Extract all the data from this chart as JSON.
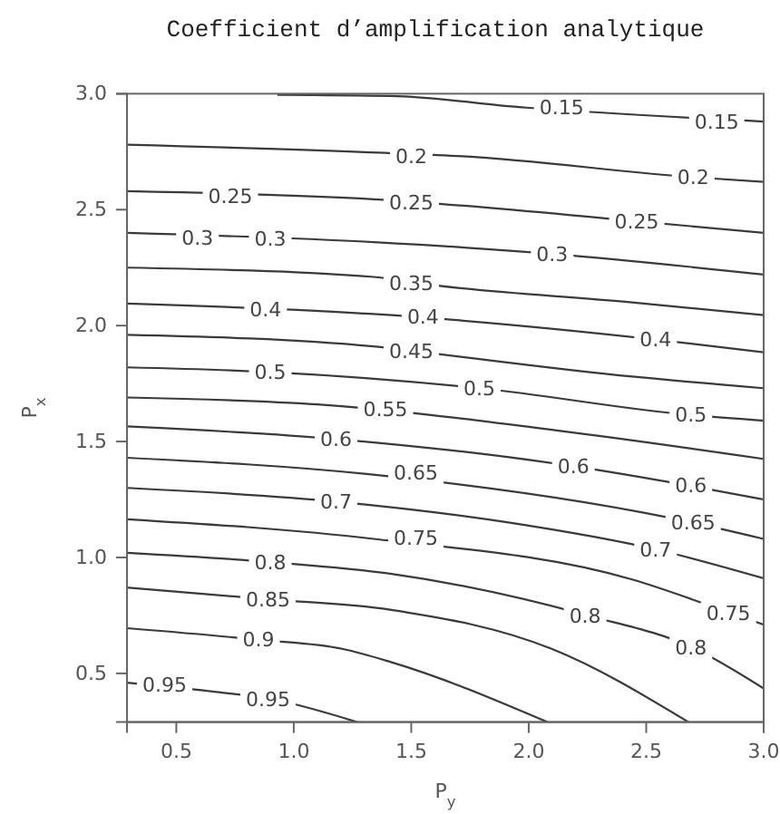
{
  "chart_data": {
    "type": "line",
    "title": "Coefficient d’amplification analytique",
    "xlabel": "P$_{y}$",
    "ylabel": "P$_{x}$",
    "xlim": [
      0.29,
      3.0
    ],
    "ylim": [
      0.29,
      3.0
    ],
    "xticks": [
      {
        "value": 0.5,
        "label": "0.5"
      },
      {
        "value": 1,
        "label": "1.0"
      },
      {
        "value": 1.5,
        "label": "1.5"
      },
      {
        "value": 2,
        "label": "2.0"
      },
      {
        "value": 2.5,
        "label": "2.5"
      },
      {
        "value": 3,
        "label": "3.0"
      }
    ],
    "yticks": [
      {
        "value": 0.5,
        "label": "0.5"
      },
      {
        "value": 1,
        "label": "1.0"
      },
      {
        "value": 1.5,
        "label": "1.5"
      },
      {
        "value": 2,
        "label": "2.0"
      },
      {
        "value": 2.5,
        "label": "2.5"
      },
      {
        "value": 3,
        "label": "3.0"
      }
    ],
    "series": [
      {
        "color": "#3a3a3a",
        "x": [
          0.93,
          1.41,
          1.99,
          3.0
        ],
        "values": [
          2.995,
          2.99,
          2.94,
          2.88
        ]
      },
      {
        "color": "#3a3a3a",
        "x": [
          0.29,
          1.39,
          1.72,
          2.7,
          3.0
        ],
        "values": [
          2.78,
          2.745,
          2.73,
          2.64,
          2.62
        ]
      },
      {
        "color": "#3a3a3a",
        "x": [
          0.29,
          1.34,
          2.46,
          3.0
        ],
        "values": [
          2.58,
          2.545,
          2.45,
          2.4
        ]
      },
      {
        "color": "#3a3a3a",
        "x": [
          0.29,
          1.34,
          2.09,
          3.0
        ],
        "values": [
          2.4,
          2.36,
          2.31,
          2.22
        ]
      },
      {
        "color": "#3a3a3a",
        "x": [
          0.29,
          1.34,
          1.51,
          2.44,
          3.0
        ],
        "values": [
          2.25,
          2.21,
          2.185,
          2.1,
          2.045
        ]
      },
      {
        "color": "#3a3a3a",
        "x": [
          0.29,
          1.34,
          2.54,
          3.0
        ],
        "values": [
          2.095,
          2.05,
          1.94,
          1.885
        ]
      },
      {
        "color": "#3a3a3a",
        "x": [
          0.29,
          1.34,
          1.51,
          2.44,
          3.0
        ],
        "values": [
          1.96,
          1.91,
          1.89,
          1.78,
          1.73
        ]
      },
      {
        "color": "#3a3a3a",
        "x": [
          0.29,
          0.89,
          1.79,
          2.68,
          3.0
        ],
        "values": [
          1.82,
          1.8,
          1.73,
          1.615,
          1.59
        ]
      },
      {
        "color": "#3a3a3a",
        "x": [
          0.29,
          1.1,
          2.18,
          3.0
        ],
        "values": [
          1.69,
          1.66,
          1.54,
          1.425
        ]
      },
      {
        "color": "#3a3a3a",
        "x": [
          0.29,
          1.19,
          2.18,
          2.68,
          3.0
        ],
        "values": [
          1.565,
          1.51,
          1.395,
          1.31,
          1.25
        ]
      },
      {
        "color": "#3a3a3a",
        "x": [
          0.29,
          1.31,
          2.7,
          3.0
        ],
        "values": [
          1.43,
          1.36,
          1.15,
          1.08
        ]
      },
      {
        "color": "#3a3a3a",
        "x": [
          0.29,
          1.19,
          1.92,
          2.54,
          3.0
        ],
        "values": [
          1.3,
          1.24,
          1.15,
          1.035,
          0.91
        ]
      },
      {
        "color": "#3a3a3a",
        "x": [
          0.29,
          1.34,
          2.44,
          2.86,
          3.0
        ],
        "values": [
          1.165,
          1.08,
          0.905,
          0.76,
          0.71
        ]
      },
      {
        "color": "#3a3a3a",
        "x": [
          0.29,
          0.9,
          1.41,
          2.25,
          2.7,
          3.0
        ],
        "values": [
          1.02,
          0.98,
          0.93,
          0.75,
          0.61,
          0.435
        ]
      },
      {
        "color": "#3a3a3a",
        "x": [
          0.29,
          0.89,
          1.41,
          2.1,
          2.68
        ],
        "values": [
          0.87,
          0.82,
          0.775,
          0.605,
          0.29
        ]
      },
      {
        "color": "#3a3a3a",
        "x": [
          0.29,
          0.85,
          1.21,
          1.41,
          2.08
        ],
        "values": [
          0.695,
          0.645,
          0.605,
          0.55,
          0.29
        ]
      },
      {
        "color": "#3a3a3a",
        "x": [
          0.29,
          0.67,
          0.9,
          1.27
        ],
        "values": [
          0.46,
          0.42,
          0.39,
          0.29
        ]
      }
    ],
    "annotations": [
      {
        "text": "0.15",
        "x": 2.14,
        "y": 2.94
      },
      {
        "text": "0.15",
        "x": 2.8,
        "y": 2.88
      },
      {
        "text": "0.2",
        "x": 1.5,
        "y": 2.73
      },
      {
        "text": "0.2",
        "x": 2.7,
        "y": 2.64
      },
      {
        "text": "0.25",
        "x": 0.73,
        "y": 2.56
      },
      {
        "text": "0.25",
        "x": 1.5,
        "y": 2.53
      },
      {
        "text": "0.25",
        "x": 2.46,
        "y": 2.45
      },
      {
        "text": "0.3",
        "x": 0.59,
        "y": 2.38
      },
      {
        "text": "0.3",
        "x": 0.9,
        "y": 2.375
      },
      {
        "text": "0.3",
        "x": 2.1,
        "y": 2.31
      },
      {
        "text": "0.35",
        "x": 1.5,
        "y": 2.185
      },
      {
        "text": "0.4",
        "x": 0.88,
        "y": 2.07
      },
      {
        "text": "0.4",
        "x": 1.55,
        "y": 2.04
      },
      {
        "text": "0.4",
        "x": 2.54,
        "y": 1.94
      },
      {
        "text": "0.45",
        "x": 1.5,
        "y": 1.89
      },
      {
        "text": "0.5",
        "x": 0.9,
        "y": 1.8
      },
      {
        "text": "0.5",
        "x": 1.79,
        "y": 1.73
      },
      {
        "text": "0.5",
        "x": 2.69,
        "y": 1.615
      },
      {
        "text": "0.55",
        "x": 1.39,
        "y": 1.64
      },
      {
        "text": "0.6",
        "x": 1.18,
        "y": 1.51
      },
      {
        "text": "0.6",
        "x": 2.19,
        "y": 1.395
      },
      {
        "text": "0.6",
        "x": 2.69,
        "y": 1.31
      },
      {
        "text": "0.65",
        "x": 1.52,
        "y": 1.365
      },
      {
        "text": "0.65",
        "x": 2.7,
        "y": 1.15
      },
      {
        "text": "0.7",
        "x": 1.18,
        "y": 1.24
      },
      {
        "text": "0.7",
        "x": 2.54,
        "y": 1.035
      },
      {
        "text": "0.75",
        "x": 1.52,
        "y": 1.085
      },
      {
        "text": "0.75",
        "x": 2.85,
        "y": 0.76
      },
      {
        "text": "0.8",
        "x": 0.9,
        "y": 0.98
      },
      {
        "text": "0.8",
        "x": 2.24,
        "y": 0.75
      },
      {
        "text": "0.8",
        "x": 2.69,
        "y": 0.61
      },
      {
        "text": "0.85",
        "x": 0.89,
        "y": 0.82
      },
      {
        "text": "0.9",
        "x": 0.85,
        "y": 0.645
      },
      {
        "text": "0.95",
        "x": 0.45,
        "y": 0.45
      },
      {
        "text": "0.95",
        "x": 0.89,
        "y": 0.39
      }
    ]
  }
}
